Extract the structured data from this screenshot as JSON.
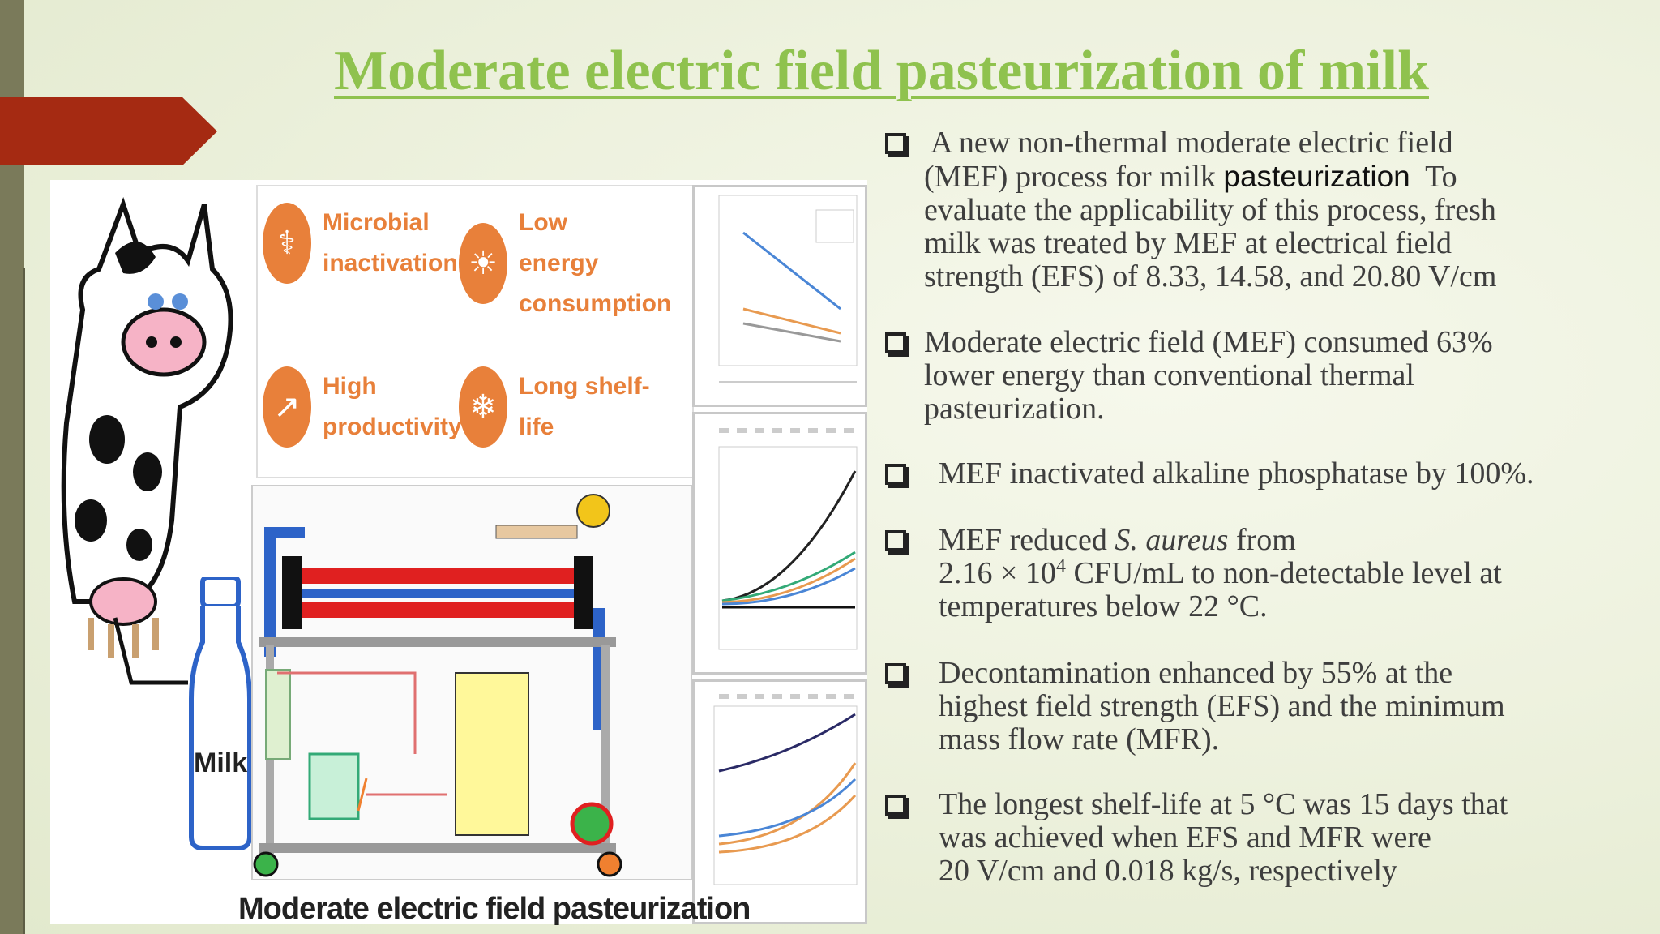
{
  "slide": {
    "title": "Moderate electric field pasteurization of milk",
    "accent_color": "#8fc24e",
    "arrow_color": "#a52a12"
  },
  "figure": {
    "caption": "Moderate electric field pasteurization",
    "milk_label": "Milk",
    "benefits": [
      {
        "label_line1": "Microbial",
        "label_line2": "inactivation",
        "icon": "dna-icon"
      },
      {
        "label_line1": "Low energy",
        "label_line2": "consumption",
        "icon": "sun-icon"
      },
      {
        "label_line1": "High",
        "label_line2": "productivity",
        "icon": "chart-icon"
      },
      {
        "label_line1": "Long shelf-life",
        "label_line2": "",
        "icon": "snowflake-icon"
      }
    ],
    "benefit_color": "#e8803a"
  },
  "bullets": [
    {
      "lines": [
        " A new non-thermal moderate electric field",
        "(MEF) process for milk ",
        "evaluate the applicability of this process, fresh",
        "milk was treated by MEF at electrical field",
        "strength (EFS) of 8.33, 14.58, and 20.80 V/cm"
      ],
      "highlight": "pasteurization",
      "line2_tail": "  To"
    },
    {
      "lines": [
        "Moderate electric field (MEF) consumed 63%",
        "lower energy than conventional thermal",
        "pasteurization."
      ]
    },
    {
      "lines": [
        "MEF inactivated alkaline phosphatase by 100%."
      ]
    },
    {
      "line1_pre": "MEF reduced ",
      "line1_italic": "S. aureus",
      "line1_post": " from",
      "line2_pre": "2.16 × 10",
      "line2_sup": "4",
      "line2_post": " CFU/mL to non-detectable level at",
      "line3": "temperatures below 22 °C."
    },
    {
      "lines": [
        "Decontamination enhanced by 55% at the",
        "highest field strength (EFS) and the minimum",
        "mass flow rate (MFR)."
      ]
    },
    {
      "lines": [
        "The longest shelf-life at 5 °C was 15 days that",
        "was achieved when EFS and MFR were",
        "20 V/cm and 0.018 kg/s, respectively"
      ]
    }
  ]
}
